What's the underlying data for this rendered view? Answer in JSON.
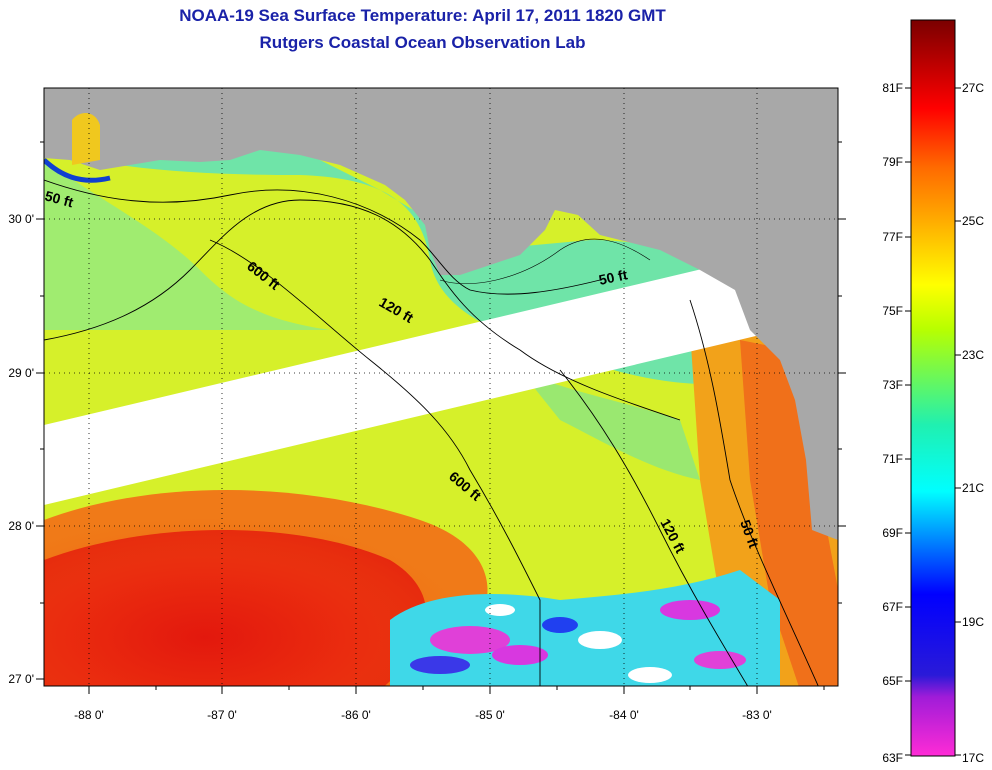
{
  "title": {
    "line1": "NOAA-19 Sea Surface Temperature:  April 17, 2011 1820 GMT",
    "line2": "Rutgers Coastal Ocean Observation Lab"
  },
  "map": {
    "lon_labels": [
      "-88 0'",
      "-87 0'",
      "-86 0'",
      "-85 0'",
      "-84 0'",
      "-83 0'"
    ],
    "lat_labels": [
      "30 0'",
      "29 0'",
      "28 0'",
      "27 0'"
    ],
    "contour_labels": [
      "50 ft",
      "600 ft",
      "120 ft",
      "50 ft",
      "600 ft",
      "120 ft",
      "50 ft"
    ]
  },
  "colorbar": {
    "fahrenheit": [
      "81F",
      "79F",
      "77F",
      "75F",
      "73F",
      "71F",
      "69F",
      "67F",
      "65F",
      "63F"
    ],
    "celsius": [
      "27C",
      "25C",
      "23C",
      "21C",
      "19C",
      "17C"
    ]
  },
  "colors": {
    "title": "#1a22a8",
    "land": "#a8a8a8",
    "missing_swath": "#ffffff",
    "warm": "#e81e10",
    "cool": "#7de0a0"
  }
}
